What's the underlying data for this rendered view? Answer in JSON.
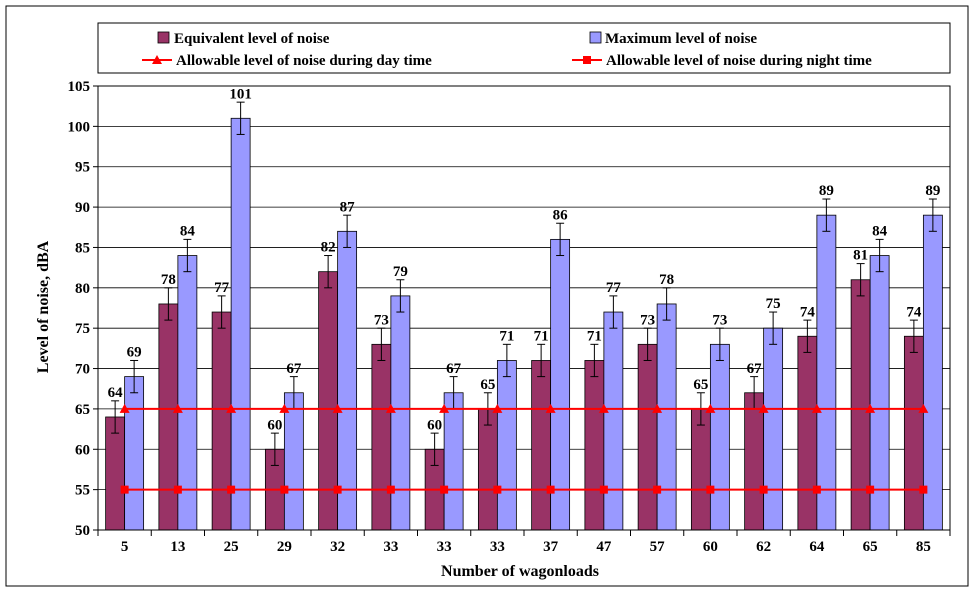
{
  "chart_data": {
    "type": "bar",
    "xlabel": "Number of wagonloads",
    "ylabel": "Level of noise, dBA",
    "ylim": [
      50,
      105
    ],
    "ytick_step": 5,
    "grid": true,
    "legend_position": "top",
    "categories": [
      "5",
      "13",
      "25",
      "29",
      "32",
      "33",
      "33",
      "33",
      "37",
      "47",
      "57",
      "60",
      "62",
      "64",
      "65",
      "85"
    ],
    "series": [
      {
        "name": "Equivalent level of noise",
        "kind": "bar",
        "color": "#993366",
        "values": [
          64,
          78,
          77,
          60,
          82,
          73,
          60,
          65,
          71,
          71,
          73,
          65,
          67,
          74,
          81,
          74
        ],
        "error": 2
      },
      {
        "name": "Maximum level of noise",
        "kind": "bar",
        "color": "#9999ff",
        "values": [
          69,
          84,
          101,
          67,
          87,
          79,
          67,
          71,
          86,
          77,
          78,
          73,
          75,
          89,
          84,
          89
        ],
        "error": 2
      },
      {
        "name": "Allowable level of noise during day time",
        "kind": "line",
        "marker": "triangle",
        "color": "#ff0000",
        "values": [
          65,
          65,
          65,
          65,
          65,
          65,
          65,
          65,
          65,
          65,
          65,
          65,
          65,
          65,
          65,
          65
        ]
      },
      {
        "name": "Allowable level of noise during night time",
        "kind": "line",
        "marker": "square",
        "color": "#ff0000",
        "values": [
          55,
          55,
          55,
          55,
          55,
          55,
          55,
          55,
          55,
          55,
          55,
          55,
          55,
          55,
          55,
          55
        ]
      }
    ]
  }
}
